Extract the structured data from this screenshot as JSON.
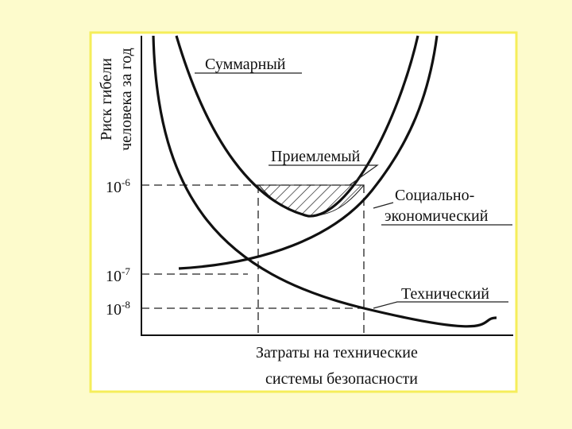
{
  "y_axis": {
    "label_lines": [
      "Риск гибели",
      "человека за год"
    ],
    "ticks": [
      {
        "base": "10",
        "exp": "-6"
      },
      {
        "base": "10",
        "exp": "-7"
      },
      {
        "base": "10",
        "exp": "-8"
      }
    ]
  },
  "x_axis": {
    "label_lines": [
      "Затраты на технические",
      "системы безопасности"
    ]
  },
  "curves": {
    "total": "Суммарный",
    "acceptable": "Приемлемый",
    "social": [
      "Социально-",
      "экономический"
    ],
    "technical": "Технический"
  }
}
